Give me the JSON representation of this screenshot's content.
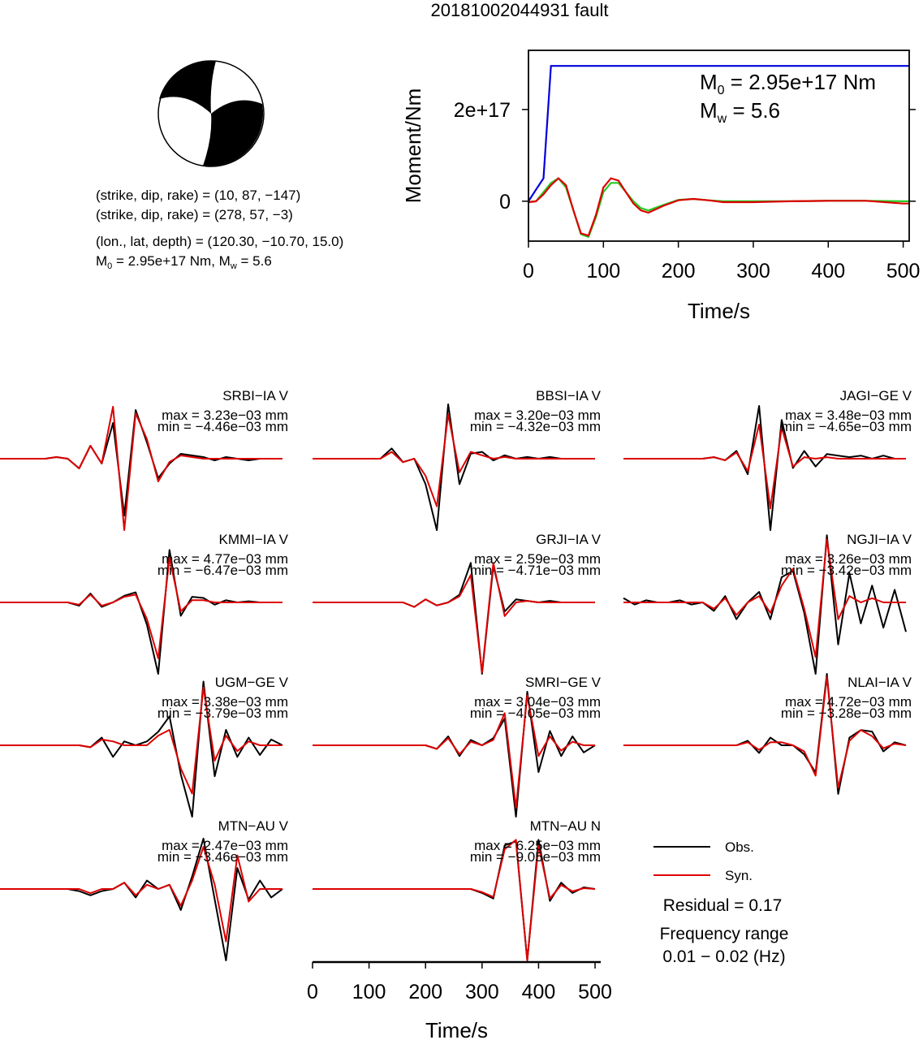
{
  "title": "20181002044931 fault",
  "focal_mechanism": {
    "lines": [
      "(strike, dip, rake) = (10, 87, −147)",
      "(strike, dip, rake) = (278, 57, −3)",
      "(lon., lat, depth) = (120.30, −10.70, 15.0)"
    ],
    "moment_line": [
      "M",
      "0",
      " = 2.95e+17 Nm, M",
      "w",
      " = 5.6"
    ]
  },
  "chart_data": [
    {
      "type": "line",
      "xlabel": "Time/s",
      "ylabel": "Moment/Nm",
      "xlim": [
        0,
        508
      ],
      "ylim": [
        -8.7e+16,
        3.29e+17
      ],
      "xticks": [
        0,
        100,
        200,
        300,
        400,
        500
      ],
      "yticks": [
        0,
        {
          "value": 2e+17,
          "label": "2e+17"
        }
      ],
      "annotations": [
        [
          "M",
          "0",
          " = 2.95e+17 Nm"
        ],
        [
          "M",
          "w",
          " = 5.6"
        ]
      ],
      "x": [
        0,
        10,
        20,
        30,
        40,
        50,
        60,
        70,
        80,
        90,
        100,
        110,
        120,
        130,
        140,
        150,
        160,
        180,
        200,
        220,
        240,
        260,
        300,
        350,
        400,
        450,
        500,
        508
      ],
      "series": [
        {
          "color": "#0000dd",
          "values": [
            0,
            2.5e+16,
            5e+16,
            2.95e+17,
            2.95e+17,
            2.95e+17,
            2.95e+17,
            2.95e+17,
            2.95e+17,
            2.95e+17,
            2.95e+17,
            2.95e+17,
            2.95e+17,
            2.95e+17,
            2.95e+17,
            2.95e+17,
            2.95e+17,
            2.95e+17,
            2.95e+17,
            2.95e+17,
            2.95e+17,
            2.95e+17,
            2.95e+17,
            2.95e+17,
            2.95e+17,
            2.95e+17,
            2.95e+17,
            2.95e+17
          ]
        },
        {
          "color": "#22cc22",
          "values": [
            -2000000000000000.0,
            0,
            2e+16,
            4e+16,
            5e+16,
            3e+16,
            -2e+16,
            -7.2e+16,
            -7.8e+16,
            -3.5e+16,
            2e+16,
            4e+16,
            4e+16,
            2e+16,
            0,
            -1.5e+16,
            -2e+16,
            -8000000000000000.0,
            3000000000000000.0,
            5000000000000000.0,
            2000000000000000.0,
            0,
            0,
            0,
            1000000000000000.0,
            1000000000000000.0,
            0,
            0
          ]
        },
        {
          "color": "#dd0000",
          "values": [
            -2000000000000000.0,
            0,
            1.5e+16,
            3.5e+16,
            5e+16,
            3.5e+16,
            -2e+16,
            -7e+16,
            -7.5e+16,
            -3e+16,
            3e+16,
            5e+16,
            4.5e+16,
            2e+16,
            -5000000000000000.0,
            -2e+16,
            -2.5e+16,
            -1e+16,
            2000000000000000.0,
            5000000000000000.0,
            2000000000000000.0,
            -2000000000000000.0,
            -2000000000000000.0,
            0,
            1000000000000000.0,
            1000000000000000.0,
            -5000000000000000.0,
            -5000000000000000.0
          ]
        }
      ]
    },
    {
      "type": "waveform",
      "xlabel": "Time/s",
      "xlim": [
        0,
        510
      ],
      "xticks": [
        0,
        100,
        200,
        300,
        400,
        500
      ],
      "x": [
        0,
        20,
        40,
        60,
        80,
        100,
        120,
        140,
        160,
        180,
        200,
        220,
        240,
        260,
        280,
        300,
        320,
        340,
        360,
        380,
        400,
        420,
        440,
        460,
        480,
        500
      ],
      "series": [
        {
          "name": "Obs.",
          "color": "#000000"
        },
        {
          "name": "Syn.",
          "color": "#dd0000"
        }
      ],
      "residual": "Residual = 0.17",
      "frequency_title": "Frequency range",
      "frequency_range": "0.01 − 0.02 (Hz)",
      "panels": [
        {
          "title": "SRBI−IA V",
          "max": "max = 3.23e−03 mm",
          "min": "min = −4.46e−03 mm",
          "obs": [
            0,
            0,
            0,
            0,
            0,
            0.1,
            0,
            -0.6,
            0.8,
            -0.3,
            2.2,
            -3.5,
            3.0,
            1.0,
            -1.2,
            -0.3,
            0.3,
            0.2,
            0.1,
            -0.1,
            0.1,
            0,
            -0.1,
            0,
            0,
            0
          ],
          "syn": [
            0,
            0,
            0,
            0,
            0,
            0.1,
            0,
            -0.6,
            0.8,
            -0.3,
            3.2,
            -4.4,
            2.8,
            1.2,
            -1.4,
            -0.2,
            0.2,
            0.1,
            0,
            0,
            0,
            0,
            0,
            0,
            0,
            0
          ]
        },
        {
          "title": "BBSI−IA V",
          "max": "max = 3.20e−03 mm",
          "min": "min = −4.32e−03 mm",
          "obs": [
            0,
            0,
            0,
            0,
            0,
            0,
            0,
            0.6,
            -0.2,
            0,
            -1.5,
            -4.2,
            3.2,
            -1.5,
            0.3,
            0.4,
            -0.1,
            0.2,
            0,
            0.1,
            0,
            0.1,
            0,
            0,
            0,
            0
          ],
          "syn": [
            0,
            0,
            0,
            0,
            0,
            0,
            0,
            0.4,
            -0.2,
            0,
            -1.0,
            -2.8,
            2.6,
            -0.8,
            0.4,
            0.2,
            0,
            0.1,
            0,
            0,
            0,
            0,
            0,
            0,
            0,
            0
          ]
        },
        {
          "title": "JAGI−GE V",
          "max": "max = 3.48e−03 mm",
          "min": "min = −4.65e−03 mm",
          "obs": [
            0,
            0,
            0,
            0,
            0,
            0,
            0,
            0,
            0.1,
            -0.1,
            0.5,
            -1.0,
            3.4,
            -4.6,
            2.5,
            -0.6,
            0.5,
            -0.5,
            0.3,
            0.2,
            0.1,
            0.2,
            0,
            0.2,
            0,
            0
          ],
          "syn": [
            0,
            0,
            0,
            0,
            0,
            0,
            0,
            0,
            0.1,
            -0.1,
            0.4,
            -0.8,
            2.2,
            -3.2,
            2.0,
            -0.5,
            0.1,
            0,
            0.1,
            0,
            0,
            0,
            0,
            0,
            0,
            0
          ]
        },
        {
          "title": "KMMI−IA V",
          "max": "max = 4.77e−03 mm",
          "min": "min = −6.47e−03 mm",
          "obs": [
            0,
            0,
            0,
            0,
            0,
            0,
            0,
            -0.3,
            0.8,
            -0.4,
            0,
            0.6,
            0.9,
            -2.0,
            -6.4,
            4.7,
            -1.2,
            0.5,
            0.4,
            -0.2,
            0.2,
            0,
            0.1,
            0,
            0,
            0
          ],
          "syn": [
            0,
            0,
            0,
            0,
            0,
            0,
            0,
            -0.2,
            0.7,
            -0.3,
            0,
            0.5,
            0.7,
            -1.5,
            -5.0,
            4.0,
            -0.8,
            0.2,
            0.2,
            0,
            0,
            0,
            0,
            0,
            0,
            0
          ]
        },
        {
          "title": "GRJI−IA V",
          "max": "max = 2.59e−03 mm",
          "min": "min = −4.71e−03 mm",
          "obs": [
            0,
            0,
            0,
            0,
            0,
            0,
            0,
            0,
            0,
            -0.3,
            0.2,
            -0.2,
            0,
            0.5,
            2.6,
            -4.7,
            2.4,
            -0.6,
            0.2,
            0.1,
            0,
            0.1,
            0,
            0,
            0,
            0
          ],
          "syn": [
            0,
            0,
            0,
            0,
            0,
            0,
            0,
            0,
            0,
            -0.3,
            0.2,
            -0.2,
            0,
            0.4,
            1.8,
            -4.6,
            2.6,
            -0.9,
            0,
            0.1,
            0,
            0,
            0,
            0,
            0,
            0
          ]
        },
        {
          "title": "NGJI−IA V",
          "max": "max = 3.26e−03 mm",
          "min": "min = −3.42e−03 mm",
          "obs": [
            0.2,
            -0.1,
            0.1,
            0,
            0,
            0.1,
            -0.1,
            0,
            -0.4,
            0.3,
            -0.8,
            0,
            0.5,
            -0.8,
            1.2,
            1.5,
            -0.5,
            -3.4,
            3.2,
            -2.0,
            1.4,
            -1.0,
            0.8,
            -1.2,
            0.6,
            -1.4
          ],
          "syn": [
            0,
            0,
            0,
            0,
            0,
            0,
            0,
            0,
            -0.3,
            0.2,
            -0.6,
            0,
            0.3,
            -0.5,
            0.8,
            1.6,
            -0.3,
            -2.6,
            3.0,
            -0.8,
            0.3,
            0,
            0.2,
            0,
            0,
            0
          ]
        },
        {
          "title": "UGM−GE V",
          "max": "max = 3.38e−03 mm",
          "min": "min = −3.79e−03 mm",
          "obs": [
            0,
            0,
            0,
            0,
            0,
            0,
            0,
            0,
            -0.1,
            0.4,
            -0.6,
            0.2,
            0,
            0.2,
            0.7,
            1.5,
            -1.5,
            -3.7,
            3.3,
            -1.6,
            0.8,
            -0.6,
            0.4,
            -0.5,
            0.3,
            0
          ],
          "syn": [
            0,
            0,
            0,
            0,
            0,
            0,
            0,
            0,
            -0.1,
            0.3,
            0.2,
            0,
            0,
            0,
            0.5,
            0.8,
            -1.2,
            -2.5,
            3.0,
            -0.8,
            0.5,
            -0.3,
            0.2,
            0,
            0,
            0
          ]
        },
        {
          "title": "SMRI−GE V",
          "max": "max = 3.04e−03 mm",
          "min": "min = −4.05e−03 mm",
          "obs": [
            0,
            0,
            0,
            0,
            0,
            0,
            0,
            0,
            0,
            0,
            0,
            -0.2,
            0.5,
            -0.6,
            0.3,
            0,
            0.4,
            1.5,
            -4.0,
            3.0,
            -1.5,
            0.8,
            -0.6,
            0.5,
            -0.4,
            0
          ],
          "syn": [
            0,
            0,
            0,
            0,
            0,
            0,
            0,
            0,
            0,
            0,
            0,
            -0.2,
            0.4,
            -0.5,
            0.2,
            0,
            0.3,
            1.8,
            -3.5,
            2.8,
            -0.6,
            0.5,
            -0.3,
            0.2,
            0,
            0
          ]
        },
        {
          "title": "NLAI−IA V",
          "max": "max = 4.72e−03 mm",
          "min": "min = −3.28e−03 mm",
          "obs": [
            0,
            0,
            0,
            0,
            0,
            0,
            0,
            0,
            0,
            0,
            0,
            0.3,
            -0.5,
            0.5,
            0,
            0,
            -0.6,
            -1.8,
            4.7,
            -3.2,
            0.5,
            1.0,
            0.9,
            -0.4,
            0.2,
            0
          ],
          "syn": [
            0,
            0,
            0,
            0,
            0,
            0,
            0,
            0,
            0,
            0,
            0,
            0.2,
            -0.3,
            0.2,
            0.2,
            0,
            -0.4,
            -2.0,
            4.5,
            -2.8,
            0.3,
            1.0,
            0.6,
            -0.2,
            0.1,
            0
          ]
        },
        {
          "title": "MTN−AU V",
          "max": "max = 2.47e−03 mm",
          "min": "min = −3.46e−03 mm",
          "obs": [
            0,
            0,
            0,
            0,
            0,
            0,
            0,
            -0.1,
            -0.3,
            -0.1,
            0,
            0.3,
            -0.4,
            0.4,
            0,
            0.2,
            -1.0,
            0.6,
            2.4,
            -0.5,
            -3.4,
            1.0,
            -0.5,
            0.4,
            -0.4,
            0
          ],
          "syn": [
            0,
            0,
            0,
            0,
            0,
            0,
            0,
            0,
            -0.2,
            0,
            0,
            0.3,
            -0.3,
            0.2,
            0,
            0.2,
            -0.8,
            0.4,
            2.0,
            0.2,
            -2.5,
            1.6,
            -0.6,
            0,
            0,
            0
          ]
        },
        {
          "title": "MTN−AU N",
          "max": "max = 6.25e−03 mm",
          "min": "min = −9.05e−03 mm",
          "obs": [
            0,
            0,
            0,
            0,
            0,
            0,
            0,
            0,
            0,
            0,
            0,
            0,
            0,
            0,
            0,
            -0.5,
            -1.2,
            5.5,
            6.0,
            -9.0,
            6.2,
            -1.5,
            0.8,
            -0.5,
            0.2,
            0
          ],
          "syn": [
            0,
            0,
            0,
            0,
            0,
            0,
            0,
            0,
            0,
            0,
            0,
            0,
            0,
            0,
            0,
            -0.4,
            -1.0,
            5.0,
            6.2,
            -9.0,
            5.5,
            -1.2,
            0.5,
            -0.3,
            0.1,
            0
          ]
        }
      ]
    }
  ]
}
